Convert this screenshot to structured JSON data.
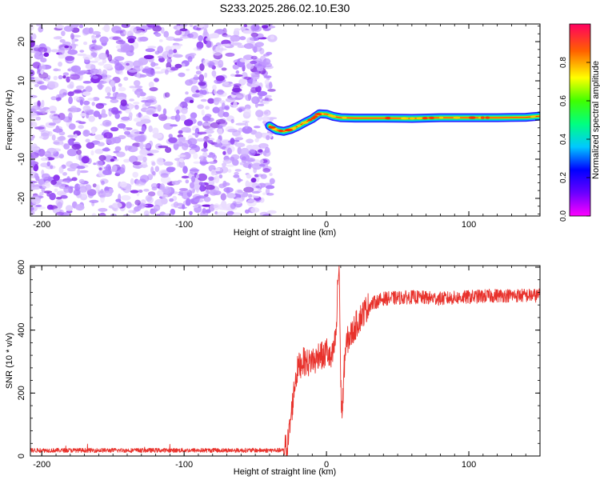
{
  "title": "S233.2025.286.02.10.E30",
  "chart_data": [
    {
      "type": "heatmap",
      "name": "spectrogram",
      "xlabel": "Height of straight line (km)",
      "ylabel": "Frequency (Hz)",
      "xlim": [
        -208,
        150
      ],
      "ylim": [
        -24.5,
        24.5
      ],
      "xticks": [
        -200,
        -100,
        0,
        100
      ],
      "yticks": [
        -20,
        -10,
        0,
        10,
        20
      ],
      "noise_region_x": [
        -208,
        -38
      ],
      "signal_track": {
        "x": [
          -40,
          -35,
          -30,
          -25,
          -20,
          -15,
          -10,
          -5,
          0,
          5,
          10,
          20,
          40,
          60,
          80,
          100,
          120,
          140,
          150
        ],
        "freq": [
          -1.5,
          -2.6,
          -2.9,
          -2.4,
          -1.6,
          -0.6,
          0.3,
          1.6,
          1.5,
          0.9,
          0.6,
          0.5,
          0.5,
          0.4,
          0.6,
          0.6,
          0.6,
          0.7,
          1.0
        ]
      },
      "colorbar": {
        "label": "Normalized spectral amplitude",
        "range": [
          0.0,
          1.0
        ],
        "ticks": [
          "0.0",
          "0.2",
          "0.4",
          "0.6",
          "0.8"
        ]
      }
    },
    {
      "type": "line",
      "name": "snr",
      "xlabel": "Height of straight line (km)",
      "ylabel": "SNR (10 * v/v)",
      "xlim": [
        -208,
        150
      ],
      "ylim": [
        0,
        605
      ],
      "xticks": [
        -200,
        -100,
        0,
        100
      ],
      "yticks": [
        0,
        200,
        400,
        600
      ],
      "series": [
        {
          "name": "SNR",
          "color": "#e8322c",
          "x": [
            -208,
            -150,
            -100,
            -50,
            -30,
            -27,
            -24,
            -22,
            -20,
            -17,
            -15,
            -12,
            -10,
            -8,
            -5,
            -2,
            0,
            3,
            5,
            7,
            8,
            9,
            10,
            11,
            13,
            15,
            18,
            20,
            25,
            30,
            40,
            60,
            80,
            100,
            120,
            150
          ],
          "y": [
            18,
            18,
            18,
            18,
            18,
            45,
            160,
            240,
            280,
            300,
            300,
            295,
            310,
            300,
            330,
            310,
            340,
            300,
            330,
            400,
            560,
            600,
            220,
            130,
            330,
            370,
            390,
            410,
            450,
            480,
            500,
            505,
            500,
            505,
            510,
            510
          ]
        }
      ]
    }
  ]
}
